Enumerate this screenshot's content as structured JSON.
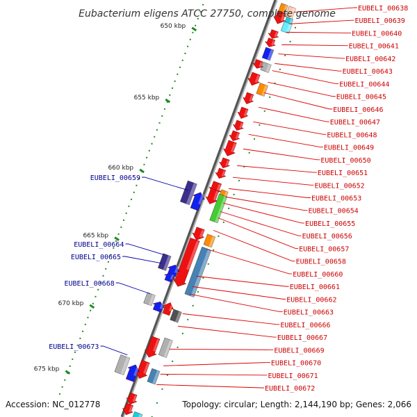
{
  "title": "Eubacterium eligens ATCC 27750, complete genome",
  "footer": {
    "accession": "Accession: NC_012778",
    "topology": "Topology: circular; Length: 2,144,190 bp; Genes: 2,066"
  },
  "ticks": [
    {
      "label": "650 kbp",
      "t": 0.125
    },
    {
      "label": "655 kbp",
      "t": 0.297
    },
    {
      "label": "660 kbp",
      "t": 0.465
    },
    {
      "label": "665 kbp",
      "t": 0.628
    },
    {
      "label": "670 kbp",
      "t": 0.79
    },
    {
      "label": "675 kbp",
      "t": 0.948
    }
  ],
  "right_labels": [
    {
      "text": "EUBELI_00638",
      "t": 0.012
    },
    {
      "text": "EUBELI_00639",
      "t": 0.04
    },
    {
      "text": "EUBELI_00640",
      "t": 0.06
    },
    {
      "text": "EUBELI_00641",
      "t": 0.09
    },
    {
      "text": "EUBELI_00642",
      "t": 0.112
    },
    {
      "text": "EUBELI_00643",
      "t": 0.135
    },
    {
      "text": "EUBELI_00644",
      "t": 0.152
    },
    {
      "text": "EUBELI_00645",
      "t": 0.18
    },
    {
      "text": "EUBELI_00646",
      "t": 0.205
    },
    {
      "text": "EUBELI_00647",
      "t": 0.24
    },
    {
      "text": "EUBELI_00648",
      "t": 0.275
    },
    {
      "text": "EUBELI_00649",
      "t": 0.305
    },
    {
      "text": "EUBELI_00650",
      "t": 0.34
    },
    {
      "text": "EUBELI_00651",
      "t": 0.38
    },
    {
      "text": "EUBELI_00652",
      "t": 0.408
    },
    {
      "text": "EUBELI_00653",
      "t": 0.435
    },
    {
      "text": "EUBELI_00654",
      "t": 0.455
    },
    {
      "text": "EUBELI_00655",
      "t": 0.47
    },
    {
      "text": "EUBELI_00656",
      "t": 0.49
    },
    {
      "text": "EUBELI_00657",
      "t": 0.505
    },
    {
      "text": "EUBELI_00658",
      "t": 0.535
    },
    {
      "text": "EUBELI_00660",
      "t": 0.58
    },
    {
      "text": "EUBELI_00661",
      "t": 0.645
    },
    {
      "text": "EUBELI_00662",
      "t": 0.67
    },
    {
      "text": "EUBELI_00663",
      "t": 0.688
    },
    {
      "text": "EUBELI_00666",
      "t": 0.735
    },
    {
      "text": "EUBELI_00667",
      "t": 0.765
    },
    {
      "text": "EUBELI_00669",
      "t": 0.82
    },
    {
      "text": "EUBELI_00670",
      "t": 0.86
    },
    {
      "text": "EUBELI_00671",
      "t": 0.88
    },
    {
      "text": "EUBELI_00672",
      "t": 0.905
    }
  ],
  "left_labels": [
    {
      "text": "EUBELI_00659",
      "t": 0.47
    },
    {
      "text": "EUBELI_00664",
      "t": 0.625
    },
    {
      "text": "EUBELI_00665",
      "t": 0.645
    },
    {
      "text": "EUBELI_00668",
      "t": 0.718
    },
    {
      "text": "EUBELI_00673",
      "t": 0.865
    }
  ],
  "colors": {
    "red": "#ee1111",
    "blue": "#1122ee",
    "navy": "#3a2f8a",
    "orange": "#ff8a00",
    "steel": "#4682b4",
    "gray": "#b0b0b0",
    "darkgray": "#505050",
    "green": "#44cc33",
    "cyan": "#22ccdd",
    "tick": "#228822",
    "backbone": "#777777"
  }
}
